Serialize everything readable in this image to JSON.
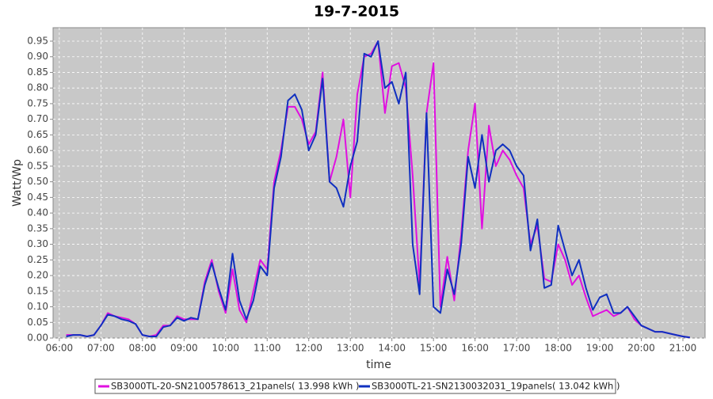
{
  "chart_data": {
    "type": "line",
    "title": "19-7-2015",
    "x_label": "time",
    "y_label": "Watt/Wp",
    "x": [
      "06:10",
      "06:20",
      "06:30",
      "06:40",
      "06:50",
      "07:00",
      "07:10",
      "07:20",
      "07:30",
      "07:40",
      "07:50",
      "08:00",
      "08:10",
      "08:20",
      "08:30",
      "08:40",
      "08:50",
      "09:00",
      "09:10",
      "09:20",
      "09:30",
      "09:40",
      "09:50",
      "10:00",
      "10:10",
      "10:20",
      "10:30",
      "10:40",
      "10:50",
      "11:00",
      "11:10",
      "11:20",
      "11:30",
      "11:40",
      "11:50",
      "12:00",
      "12:10",
      "12:20",
      "12:30",
      "12:40",
      "12:50",
      "13:00",
      "13:10",
      "13:20",
      "13:30",
      "13:40",
      "13:50",
      "14:00",
      "14:10",
      "14:20",
      "14:30",
      "14:40",
      "14:50",
      "15:00",
      "15:10",
      "15:20",
      "15:30",
      "15:40",
      "15:50",
      "16:00",
      "16:10",
      "16:20",
      "16:30",
      "16:40",
      "16:50",
      "17:00",
      "17:10",
      "17:20",
      "17:30",
      "17:40",
      "17:50",
      "18:00",
      "18:10",
      "18:20",
      "18:30",
      "18:40",
      "18:50",
      "19:00",
      "19:10",
      "19:20",
      "19:30",
      "19:40",
      "19:50",
      "20:00",
      "20:10",
      "20:20",
      "20:30",
      "20:40",
      "20:50",
      "21:00",
      "21:10"
    ],
    "series": [
      {
        "name": "SB3000TL-20-SN2100578613_21panels( 13.998 kWh )",
        "color": "#e010e0",
        "values": [
          0.01,
          0.01,
          0.01,
          0.005,
          0.01,
          0.04,
          0.08,
          0.07,
          0.065,
          0.06,
          0.045,
          0.01,
          0.005,
          0.01,
          0.04,
          0.04,
          0.07,
          0.06,
          0.06,
          0.06,
          0.18,
          0.25,
          0.15,
          0.08,
          0.22,
          0.09,
          0.05,
          0.15,
          0.25,
          0.22,
          0.5,
          0.6,
          0.74,
          0.74,
          0.7,
          0.62,
          0.66,
          0.85,
          0.5,
          0.58,
          0.7,
          0.45,
          0.78,
          0.9,
          0.91,
          0.95,
          0.72,
          0.87,
          0.88,
          0.8,
          0.52,
          0.17,
          0.72,
          0.88,
          0.1,
          0.26,
          0.12,
          0.33,
          0.6,
          0.75,
          0.35,
          0.68,
          0.55,
          0.6,
          0.57,
          0.52,
          0.48,
          0.3,
          0.36,
          0.19,
          0.18,
          0.3,
          0.25,
          0.17,
          0.2,
          0.13,
          0.07,
          0.08,
          0.09,
          0.07,
          0.08,
          0.1,
          0.06,
          0.04,
          0.03,
          0.02,
          0.02,
          0.015,
          0.01,
          0.005,
          0.002
        ]
      },
      {
        "name": "SB3000TL-21-SN2130032031_19panels( 13.042 kWh )",
        "color": "#1030c0",
        "values": [
          0.005,
          0.01,
          0.01,
          0.005,
          0.01,
          0.04,
          0.075,
          0.07,
          0.06,
          0.055,
          0.045,
          0.01,
          0.005,
          0.005,
          0.035,
          0.04,
          0.065,
          0.055,
          0.065,
          0.06,
          0.17,
          0.24,
          0.16,
          0.09,
          0.27,
          0.12,
          0.06,
          0.12,
          0.23,
          0.2,
          0.48,
          0.58,
          0.76,
          0.78,
          0.73,
          0.6,
          0.65,
          0.83,
          0.5,
          0.48,
          0.42,
          0.55,
          0.63,
          0.91,
          0.9,
          0.95,
          0.8,
          0.82,
          0.75,
          0.85,
          0.3,
          0.14,
          0.72,
          0.1,
          0.08,
          0.22,
          0.14,
          0.3,
          0.58,
          0.48,
          0.65,
          0.5,
          0.6,
          0.62,
          0.6,
          0.55,
          0.52,
          0.28,
          0.38,
          0.16,
          0.17,
          0.36,
          0.28,
          0.2,
          0.25,
          0.16,
          0.09,
          0.13,
          0.14,
          0.08,
          0.08,
          0.1,
          0.07,
          0.04,
          0.03,
          0.02,
          0.02,
          0.015,
          0.01,
          0.005,
          0.002
        ]
      }
    ],
    "xlim": [
      "05:51",
      "21:32"
    ],
    "xticks": [
      "06:00",
      "07:00",
      "08:00",
      "09:00",
      "10:00",
      "11:00",
      "12:00",
      "13:00",
      "14:00",
      "15:00",
      "16:00",
      "17:00",
      "18:00",
      "19:00",
      "20:00",
      "21:00"
    ],
    "ylim": [
      0,
      0.993
    ],
    "yticks": [
      {
        "value": 0,
        "label": "0.00"
      },
      {
        "value": 0.05,
        "label": "0.05"
      },
      {
        "value": 0.1,
        "label": "0.10"
      },
      {
        "value": 0.15,
        "label": "0.15"
      },
      {
        "value": 0.2,
        "label": "0.20"
      },
      {
        "value": 0.25,
        "label": "0.25"
      },
      {
        "value": 0.3,
        "label": "0.30"
      },
      {
        "value": 0.35,
        "label": "0.35"
      },
      {
        "value": 0.4,
        "label": "0.40"
      },
      {
        "value": 0.45,
        "label": "0.45"
      },
      {
        "value": 0.5,
        "label": "0.50"
      },
      {
        "value": 0.55,
        "label": "0.55"
      },
      {
        "value": 0.6,
        "label": "0.60"
      },
      {
        "value": 0.65,
        "label": "0.65"
      },
      {
        "value": 0.7,
        "label": "0.70"
      },
      {
        "value": 0.75,
        "label": "0.75"
      },
      {
        "value": 0.8,
        "label": "0.80"
      },
      {
        "value": 0.85,
        "label": "0.85"
      },
      {
        "value": 0.9,
        "label": "0.90"
      },
      {
        "value": 0.95,
        "label": "0.95"
      }
    ],
    "grid": true
  }
}
